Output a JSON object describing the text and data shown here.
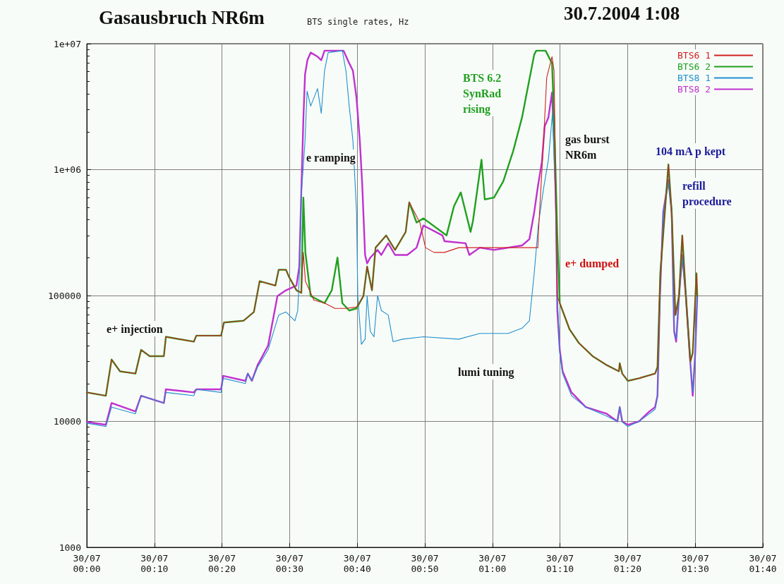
{
  "chart_data": {
    "type": "line",
    "title": "Gasausbruch NR6m",
    "subtitle": "BTS single rates, Hz",
    "log": true,
    "grid": true,
    "legend": "top right",
    "marker": "none",
    "line_style": "solid",
    "xlim": [
      "2004-07-30T00:00",
      "2004-07-30T01:40"
    ],
    "xticks": [
      {
        "value": "2004-07-30T00:00",
        "label": "30/07\n00:00"
      },
      {
        "value": "2004-07-30T00:10",
        "label": "30/07\n00:10"
      },
      {
        "value": "2004-07-30T00:20",
        "label": "30/07\n00:20"
      },
      {
        "value": "2004-07-30T00:30",
        "label": "30/07\n00:30"
      },
      {
        "value": "2004-07-30T00:40",
        "label": "30/07\n00:40"
      },
      {
        "value": "2004-07-30T00:50",
        "label": "30/07\n00:50"
      },
      {
        "value": "2004-07-30T01:00",
        "label": "30/07\n01:00"
      },
      {
        "value": "2004-07-30T01:10",
        "label": "30/07\n01:10"
      },
      {
        "value": "2004-07-30T01:20",
        "label": "30/07\n01:20"
      },
      {
        "value": "2004-07-30T01:30",
        "label": "30/07\n01:30"
      },
      {
        "value": "2004-07-30T01:40",
        "label": "30/07\n01:40"
      }
    ],
    "ylim": [
      1000,
      10000000
    ],
    "yticks": [
      1000,
      10000,
      100000,
      {
        "value": 1000000,
        "label": "1e+06"
      },
      {
        "value": 10000000,
        "label": "1e+07"
      }
    ],
    "series": [
      {
        "name": "BTS6 1",
        "color": "#d02020",
        "x": [
          "2004-07-30T00:00:00",
          "2004-07-30T00:02:49",
          "2004-07-30T00:03:40",
          "2004-07-30T00:04:55",
          "2004-07-30T00:07:12",
          "2004-07-30T00:08:02",
          "2004-07-30T00:09:18",
          "2004-07-30T00:11:24",
          "2004-07-30T00:11:42",
          "2004-07-30T00:15:50",
          "2004-07-30T00:16:12",
          "2004-07-30T00:19:52",
          "2004-07-30T00:20:17",
          "2004-07-30T00:23:10",
          "2004-07-30T00:24:43",
          "2004-07-30T00:25:34",
          "2004-07-30T00:27:54",
          "2004-07-30T00:28:23",
          "2004-07-30T00:29:28",
          "2004-07-30T00:29:56",
          "2004-07-30T00:31:01",
          "2004-07-30T00:31:44",
          "2004-07-30T00:32:02",
          "2004-07-30T00:32:20",
          "2004-07-30T00:33:36",
          "2004-07-30T00:35:10",
          "2004-07-30T00:36:43",
          "2004-07-30T00:38:20",
          "2004-07-30T00:39:54",
          "2004-07-30T00:40:55",
          "2004-07-30T00:41:28",
          "2004-07-30T00:42:11",
          "2004-07-30T00:42:43",
          "2004-07-30T00:44:17",
          "2004-07-30T00:45:36",
          "2004-07-30T00:47:10",
          "2004-07-30T00:47:42",
          "2004-07-30T00:49:16",
          "2004-07-30T00:50:06",
          "2004-07-30T00:51:22",
          "2004-07-30T00:52:55",
          "2004-07-30T00:55:01",
          "2004-07-30T01:00:14",
          "2004-07-30T01:06:43",
          "2004-07-30T01:06:47",
          "2004-07-30T01:07:34",
          "2004-07-30T01:08:02",
          "2004-07-30T01:08:49",
          "2004-07-30T01:09:07",
          "2004-07-30T01:09:25",
          "2004-07-30T01:09:36",
          "2004-07-30T01:09:58",
          "2004-07-30T01:11:24",
          "2004-07-30T01:12:47",
          "2004-07-30T01:14:49",
          "2004-07-30T01:16:55",
          "2004-07-30T01:18:43",
          "2004-07-30T01:18:50",
          "2004-07-30T01:19:12",
          "2004-07-30T01:20:02",
          "2004-07-30T01:21:40",
          "2004-07-30T01:24:04",
          "2004-07-30T01:24:25",
          "2004-07-30T01:24:50",
          "2004-07-30T01:26:02",
          "2004-07-30T01:26:31",
          "2004-07-30T01:27:04",
          "2004-07-30T01:27:36",
          "2004-07-30T01:28:05",
          "2004-07-30T01:28:37",
          "2004-07-30T01:29:17",
          "2004-07-30T01:29:38",
          "2004-07-30T01:30:11",
          "2004-07-30T01:30:18"
        ],
        "values": [
          17000,
          16000,
          31000,
          25000,
          24000,
          37000,
          33000,
          33000,
          47000,
          43000,
          48000,
          48000,
          61000,
          63000,
          74000,
          130000,
          120000,
          160000,
          160000,
          140000,
          110000,
          105000,
          220000,
          130000,
          92000,
          87000,
          79000,
          79000,
          81000,
          99000,
          170000,
          110000,
          240000,
          300000,
          230000,
          320000,
          550000,
          380000,
          240000,
          220000,
          220000,
          240000,
          240000,
          240000,
          300000,
          1700000,
          5400000,
          7900000,
          6100000,
          460000,
          99000,
          87000,
          54000,
          42000,
          33000,
          28000,
          25000,
          29000,
          24000,
          21000,
          22000,
          24000,
          27000,
          150000,
          1100000,
          460000,
          70000,
          99000,
          300000,
          99000,
          30000,
          35000,
          150000,
          99000
        ]
      },
      {
        "name": "BTS6 2",
        "color": "#20a020",
        "x": [
          "2004-07-30T00:00:00",
          "2004-07-30T00:02:49",
          "2004-07-30T00:03:40",
          "2004-07-30T00:04:55",
          "2004-07-30T00:07:12",
          "2004-07-30T00:08:02",
          "2004-07-30T00:09:18",
          "2004-07-30T00:11:24",
          "2004-07-30T00:11:42",
          "2004-07-30T00:15:50",
          "2004-07-30T00:16:12",
          "2004-07-30T00:19:52",
          "2004-07-30T00:20:17",
          "2004-07-30T00:23:10",
          "2004-07-30T00:24:43",
          "2004-07-30T00:25:34",
          "2004-07-30T00:27:54",
          "2004-07-30T00:28:23",
          "2004-07-30T00:29:28",
          "2004-07-30T00:29:56",
          "2004-07-30T00:31:01",
          "2004-07-30T00:31:44",
          "2004-07-30T00:32:02",
          "2004-07-30T00:32:20",
          "2004-07-30T00:33:07",
          "2004-07-30T00:35:10",
          "2004-07-30T00:36:14",
          "2004-07-30T00:37:05",
          "2004-07-30T00:37:48",
          "2004-07-30T00:38:49",
          "2004-07-30T00:39:54",
          "2004-07-30T00:40:55",
          "2004-07-30T00:41:28",
          "2004-07-30T00:42:11",
          "2004-07-30T00:42:43",
          "2004-07-30T00:44:17",
          "2004-07-30T00:45:36",
          "2004-07-30T00:47:10",
          "2004-07-30T00:47:42",
          "2004-07-30T00:48:47",
          "2004-07-30T00:49:48",
          "2004-07-30T00:53:13",
          "2004-07-30T00:54:18",
          "2004-07-30T00:55:19",
          "2004-07-30T00:56:46",
          "2004-07-30T00:57:07",
          "2004-07-30T00:58:23",
          "2004-07-30T00:58:52",
          "2004-07-30T01:00:14",
          "2004-07-30T01:01:37",
          "2004-07-30T01:03:04",
          "2004-07-30T01:04:23",
          "2004-07-30T01:05:10",
          "2004-07-30T01:06:11",
          "2004-07-30T01:06:29",
          "2004-07-30T01:07:52",
          "2004-07-30T01:08:49",
          "2004-07-30T01:09:07",
          "2004-07-30T01:09:36",
          "2004-07-30T01:09:58",
          "2004-07-30T01:11:24",
          "2004-07-30T01:12:47",
          "2004-07-30T01:14:49",
          "2004-07-30T01:16:55",
          "2004-07-30T01:18:43",
          "2004-07-30T01:18:50",
          "2004-07-30T01:19:12",
          "2004-07-30T01:20:02",
          "2004-07-30T01:21:40",
          "2004-07-30T01:24:04",
          "2004-07-30T01:24:25",
          "2004-07-30T01:24:50",
          "2004-07-30T01:26:02",
          "2004-07-30T01:26:31",
          "2004-07-30T01:27:04",
          "2004-07-30T01:27:36",
          "2004-07-30T01:28:05",
          "2004-07-30T01:28:37",
          "2004-07-30T01:29:17",
          "2004-07-30T01:29:38",
          "2004-07-30T01:30:11",
          "2004-07-30T01:30:18"
        ],
        "values": [
          17000,
          16000,
          31000,
          25000,
          24000,
          37000,
          33000,
          33000,
          47000,
          43000,
          48000,
          48000,
          61000,
          63000,
          74000,
          130000,
          120000,
          160000,
          160000,
          140000,
          110000,
          105000,
          600000,
          220000,
          99000,
          87000,
          110000,
          200000,
          87000,
          76000,
          79000,
          99000,
          170000,
          110000,
          240000,
          300000,
          230000,
          320000,
          550000,
          380000,
          410000,
          300000,
          510000,
          660000,
          320000,
          390000,
          1200000,
          580000,
          600000,
          810000,
          1400000,
          2600000,
          4300000,
          8200000,
          8800000,
          8800000,
          7000000,
          2600000,
          300000,
          87000,
          54000,
          42000,
          33000,
          28000,
          25000,
          29000,
          24000,
          21000,
          22000,
          24000,
          27000,
          150000,
          1100000,
          460000,
          70000,
          99000,
          300000,
          99000,
          30000,
          35000,
          150000,
          99000
        ]
      },
      {
        "name": "BTS8 1",
        "color": "#2090d0",
        "x": [
          "2004-07-30T00:00:00",
          "2004-07-30T00:02:49",
          "2004-07-30T00:03:40",
          "2004-07-30T00:07:12",
          "2004-07-30T00:08:02",
          "2004-07-30T00:11:24",
          "2004-07-30T00:11:42",
          "2004-07-30T00:15:50",
          "2004-07-30T00:16:12",
          "2004-07-30T00:19:52",
          "2004-07-30T00:20:10",
          "2004-07-30T00:23:28",
          "2004-07-30T00:23:49",
          "2004-07-30T00:24:25",
          "2004-07-30T00:25:16",
          "2004-07-30T00:26:49",
          "2004-07-30T00:28:23",
          "2004-07-30T00:29:28",
          "2004-07-30T00:30:47",
          "2004-07-30T00:31:12",
          "2004-07-30T00:31:30",
          "2004-07-30T00:31:44",
          "2004-07-30T00:32:17",
          "2004-07-30T00:32:35",
          "2004-07-30T00:33:07",
          "2004-07-30T00:34:08",
          "2004-07-30T00:34:41",
          "2004-07-30T00:35:10",
          "2004-07-30T00:35:42",
          "2004-07-30T00:37:48",
          "2004-07-30T00:38:20",
          "2004-07-30T00:38:49",
          "2004-07-30T00:39:22",
          "2004-07-30T00:39:54",
          "2004-07-30T00:40:05",
          "2004-07-30T00:40:37",
          "2004-07-30T00:41:10",
          "2004-07-30T00:41:28",
          "2004-07-30T00:41:56",
          "2004-07-30T00:42:29",
          "2004-07-30T00:43:01",
          "2004-07-30T00:43:34",
          "2004-07-30T00:44:35",
          "2004-07-30T00:45:18",
          "2004-07-30T00:46:41",
          "2004-07-30T00:49:48",
          "2004-07-30T00:55:01",
          "2004-07-30T00:58:08",
          "2004-07-30T01:02:20",
          "2004-07-30T01:04:23",
          "2004-07-30T01:05:28",
          "2004-07-30T01:06:11",
          "2004-07-30T01:06:47",
          "2004-07-30T01:07:34",
          "2004-07-30T01:08:17",
          "2004-07-30T01:08:53",
          "2004-07-30T01:09:18",
          "2004-07-30T01:09:36",
          "2004-07-30T01:09:58",
          "2004-07-30T01:10:23",
          "2004-07-30T01:11:42",
          "2004-07-30T01:13:48",
          "2004-07-30T01:16:55",
          "2004-07-30T01:18:29",
          "2004-07-30T01:18:50",
          "2004-07-30T01:19:12",
          "2004-07-30T01:20:02",
          "2004-07-30T01:21:40",
          "2004-07-30T01:23:13",
          "2004-07-30T01:24:04",
          "2004-07-30T01:24:25",
          "2004-07-30T01:24:47",
          "2004-07-30T01:25:16",
          "2004-07-30T01:26:02",
          "2004-07-30T01:26:31",
          "2004-07-30T01:26:53",
          "2004-07-30T01:27:11",
          "2004-07-30T01:27:36",
          "2004-07-30T01:28:05",
          "2004-07-30T01:28:37",
          "2004-07-30T01:29:10",
          "2004-07-30T01:29:38",
          "2004-07-30T01:30:00",
          "2004-07-30T01:30:18"
        ],
        "values": [
          9700,
          9100,
          13000,
          11500,
          16000,
          14000,
          17000,
          16000,
          18000,
          17000,
          22000,
          20000,
          24000,
          21000,
          27000,
          37000,
          70000,
          74000,
          63000,
          76000,
          170000,
          630000,
          1700000,
          4200000,
          3200000,
          4400000,
          2800000,
          6100000,
          8500000,
          8800000,
          6100000,
          3200000,
          1700000,
          460000,
          99000,
          41000,
          45000,
          99000,
          52000,
          47000,
          100000,
          76000,
          70000,
          43000,
          45000,
          47000,
          45000,
          50000,
          50000,
          55000,
          63000,
          150000,
          360000,
          710000,
          1200000,
          2800000,
          710000,
          99000,
          35000,
          24000,
          16000,
          13000,
          11000,
          10000,
          13000,
          9900,
          9100,
          10000,
          11500,
          12500,
          16000,
          99000,
          460000,
          780000,
          460000,
          52000,
          45000,
          99000,
          200000,
          99000,
          35000,
          17000,
          35000,
          99000
        ]
      },
      {
        "name": "BTS8 2",
        "color": "#c030d0",
        "x": [
          "2004-07-30T00:00:00",
          "2004-07-30T00:02:49",
          "2004-07-30T00:03:40",
          "2004-07-30T00:07:12",
          "2004-07-30T00:08:02",
          "2004-07-30T00:11:24",
          "2004-07-30T00:11:42",
          "2004-07-30T00:15:50",
          "2004-07-30T00:16:12",
          "2004-07-30T00:19:52",
          "2004-07-30T00:20:10",
          "2004-07-30T00:23:28",
          "2004-07-30T00:23:49",
          "2004-07-30T00:24:25",
          "2004-07-30T00:25:16",
          "2004-07-30T00:26:49",
          "2004-07-30T00:28:12",
          "2004-07-30T00:29:28",
          "2004-07-30T00:31:01",
          "2004-07-30T00:31:26",
          "2004-07-30T00:31:44",
          "2004-07-30T00:32:02",
          "2004-07-30T00:32:17",
          "2004-07-30T00:32:38",
          "2004-07-30T00:33:07",
          "2004-07-30T00:34:08",
          "2004-07-30T00:34:41",
          "2004-07-30T00:35:10",
          "2004-07-30T00:37:59",
          "2004-07-30T00:38:49",
          "2004-07-30T00:39:22",
          "2004-07-30T00:39:54",
          "2004-07-30T00:40:23",
          "2004-07-30T00:40:44",
          "2004-07-30T00:41:10",
          "2004-07-30T00:41:28",
          "2004-07-30T00:41:56",
          "2004-07-30T00:43:01",
          "2004-07-30T00:43:34",
          "2004-07-30T00:44:35",
          "2004-07-30T00:45:36",
          "2004-07-30T00:47:24",
          "2004-07-30T00:48:47",
          "2004-07-30T00:49:48",
          "2004-07-30T00:52:37",
          "2004-07-30T00:52:55",
          "2004-07-30T00:56:02",
          "2004-07-30T00:56:35",
          "2004-07-30T00:58:08",
          "2004-07-30T01:00:14",
          "2004-07-30T01:04:23",
          "2004-07-30T01:05:28",
          "2004-07-30T01:06:11",
          "2004-07-30T01:06:43",
          "2004-07-30T01:07:19",
          "2004-07-30T01:07:44",
          "2004-07-30T01:08:17",
          "2004-07-30T01:08:49",
          "2004-07-30T01:09:07",
          "2004-07-30T01:09:25",
          "2004-07-30T01:09:36",
          "2004-07-30T01:09:58",
          "2004-07-30T01:10:23",
          "2004-07-30T01:11:42",
          "2004-07-30T01:13:48",
          "2004-07-30T01:16:55",
          "2004-07-30T01:18:29",
          "2004-07-30T01:18:50",
          "2004-07-30T01:19:12",
          "2004-07-30T01:20:02",
          "2004-07-30T01:21:40",
          "2004-07-30T01:23:13",
          "2004-07-30T01:24:04",
          "2004-07-30T01:24:25",
          "2004-07-30T01:24:47",
          "2004-07-30T01:25:16",
          "2004-07-30T01:26:02",
          "2004-07-30T01:26:31",
          "2004-07-30T01:26:53",
          "2004-07-30T01:27:11",
          "2004-07-30T01:27:36",
          "2004-07-30T01:28:05",
          "2004-07-30T01:28:37",
          "2004-07-30T01:29:10",
          "2004-07-30T01:29:38",
          "2004-07-30T01:30:00",
          "2004-07-30T01:30:18"
        ],
        "values": [
          9900,
          9400,
          14000,
          12000,
          16000,
          14000,
          18000,
          17000,
          18000,
          18000,
          23000,
          21000,
          24000,
          21000,
          28000,
          40000,
          99000,
          110000,
          120000,
          170000,
          680000,
          2500000,
          5700000,
          7400000,
          8500000,
          7900000,
          7400000,
          8800000,
          8800000,
          7000000,
          6100000,
          3700000,
          1700000,
          780000,
          210000,
          180000,
          200000,
          230000,
          210000,
          260000,
          210000,
          210000,
          240000,
          360000,
          300000,
          270000,
          260000,
          210000,
          240000,
          230000,
          250000,
          280000,
          460000,
          730000,
          1150000,
          2200000,
          2600000,
          4100000,
          1700000,
          460000,
          76000,
          37000,
          25000,
          17000,
          13000,
          11500,
          10000,
          13000,
          10000,
          9400,
          10000,
          12000,
          13000,
          16000,
          99000,
          460000,
          830000,
          460000,
          52000,
          43000,
          99000,
          210000,
          99000,
          35000,
          16000,
          35000,
          99000
        ]
      }
    ],
    "annotations": [
      "e+ injection",
      "e ramping",
      "BTS 6.2\nSynRad\nrising",
      "gas burst\nNR6m",
      "e+ dumped",
      "104 mA p kept",
      "refill\nprocedure",
      "lumi tuning",
      "30.7.2004 1:08"
    ]
  }
}
